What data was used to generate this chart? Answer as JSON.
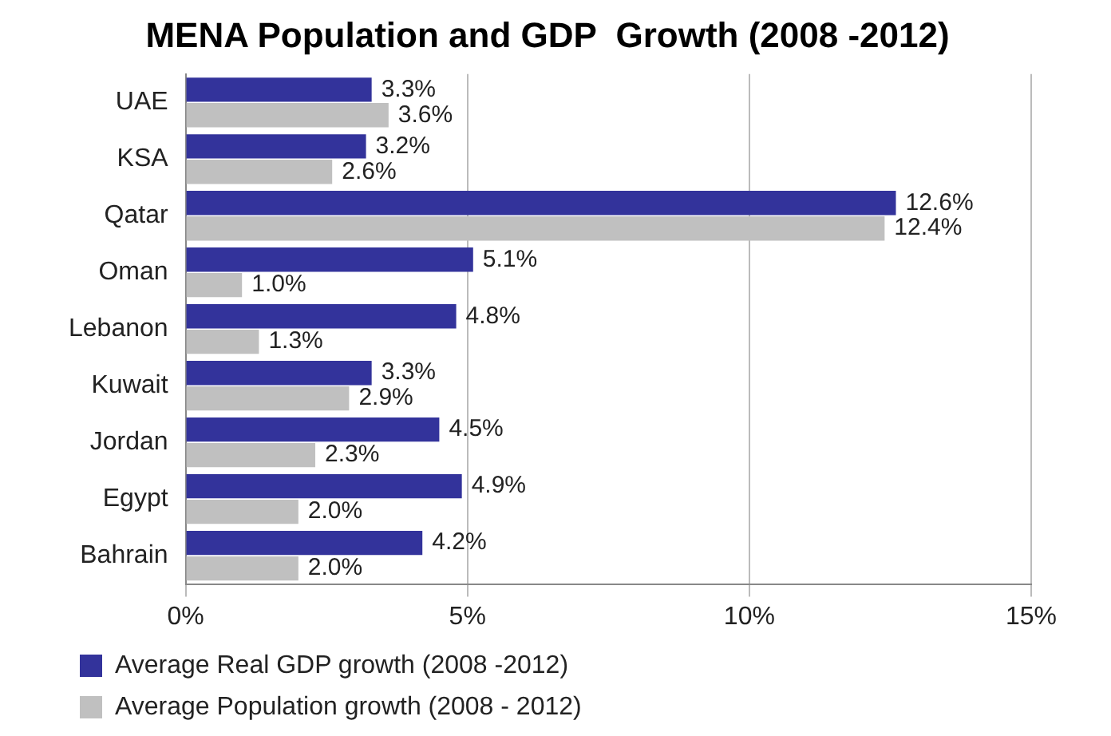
{
  "chart_data": {
    "type": "bar",
    "orientation": "horizontal",
    "title": "MENA Population and GDP  Growth (2008 -2012)",
    "categories": [
      "UAE",
      "KSA",
      "Qatar",
      "Oman",
      "Lebanon",
      "Kuwait",
      "Jordan",
      "Egypt",
      "Bahrain"
    ],
    "series": [
      {
        "name": "Average Real GDP growth (2008 -2012)",
        "color": "#33339b",
        "values": [
          3.3,
          3.2,
          12.6,
          5.1,
          4.8,
          3.3,
          4.5,
          4.9,
          4.2
        ],
        "value_labels": [
          "3.3%",
          "3.2%",
          "12.6%",
          "5.1%",
          "4.8%",
          "3.3%",
          "4.5%",
          "4.9%",
          "4.2%"
        ]
      },
      {
        "name": "Average Population growth (2008 - 2012)",
        "color": "#c0c0c0",
        "values": [
          3.6,
          2.6,
          12.4,
          1.0,
          1.3,
          2.9,
          2.3,
          2.0,
          2.0
        ],
        "value_labels": [
          "3.6%",
          "2.6%",
          "12.4%",
          "1.0%",
          "1.3%",
          "2.9%",
          "2.3%",
          "2.0%",
          "2.0%"
        ]
      }
    ],
    "xlim": [
      0,
      15
    ],
    "xticks": [
      {
        "value": 0,
        "label": "0%"
      },
      {
        "value": 5,
        "label": "5%"
      },
      {
        "value": 10,
        "label": "10%"
      },
      {
        "value": 15,
        "label": "15%"
      }
    ],
    "grid": "x",
    "legend": "bottom"
  }
}
